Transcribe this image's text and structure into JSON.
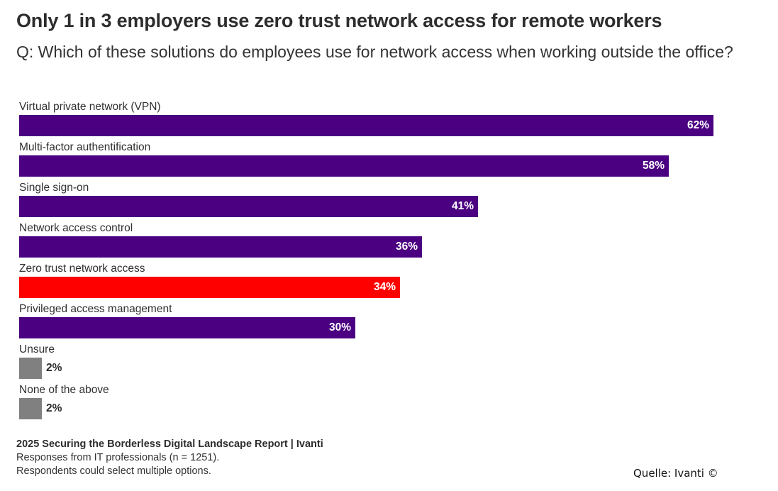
{
  "chart_data": {
    "type": "bar",
    "orientation": "horizontal",
    "title": "Only 1 in 3 employers use zero trust network access for remote workers",
    "subtitle": "Q: Which of these solutions do employees use for network access when working outside the office?",
    "xlabel": "",
    "ylabel": "",
    "unit": "%",
    "xlim": [
      0,
      62
    ],
    "grid": false,
    "legend": null,
    "categories": [
      "Virtual private network (VPN)",
      "Multi-factor authentification",
      "Single sign-on",
      "Network access control",
      "Zero trust network access",
      "Privileged access management",
      "Unsure",
      "None of the above"
    ],
    "values": [
      62,
      58,
      41,
      36,
      34,
      30,
      2,
      2
    ],
    "value_labels": [
      "62%",
      "58%",
      "41%",
      "36%",
      "34%",
      "30%",
      "2%",
      "2%"
    ],
    "highlight_index": 4,
    "colors": {
      "default": "#4b0082",
      "highlight": "#ff0000",
      "neutral": "#808080"
    },
    "neutral_indices": [
      6,
      7
    ]
  },
  "footer": {
    "source_title": "2025 Securing the Borderless Digital Landscape Report | Ivanti",
    "note_1": "Responses from IT professionals (n = 1251).",
    "note_2": "Respondents could select multiple options."
  },
  "credit": "Quelle: Ivanti  ©"
}
